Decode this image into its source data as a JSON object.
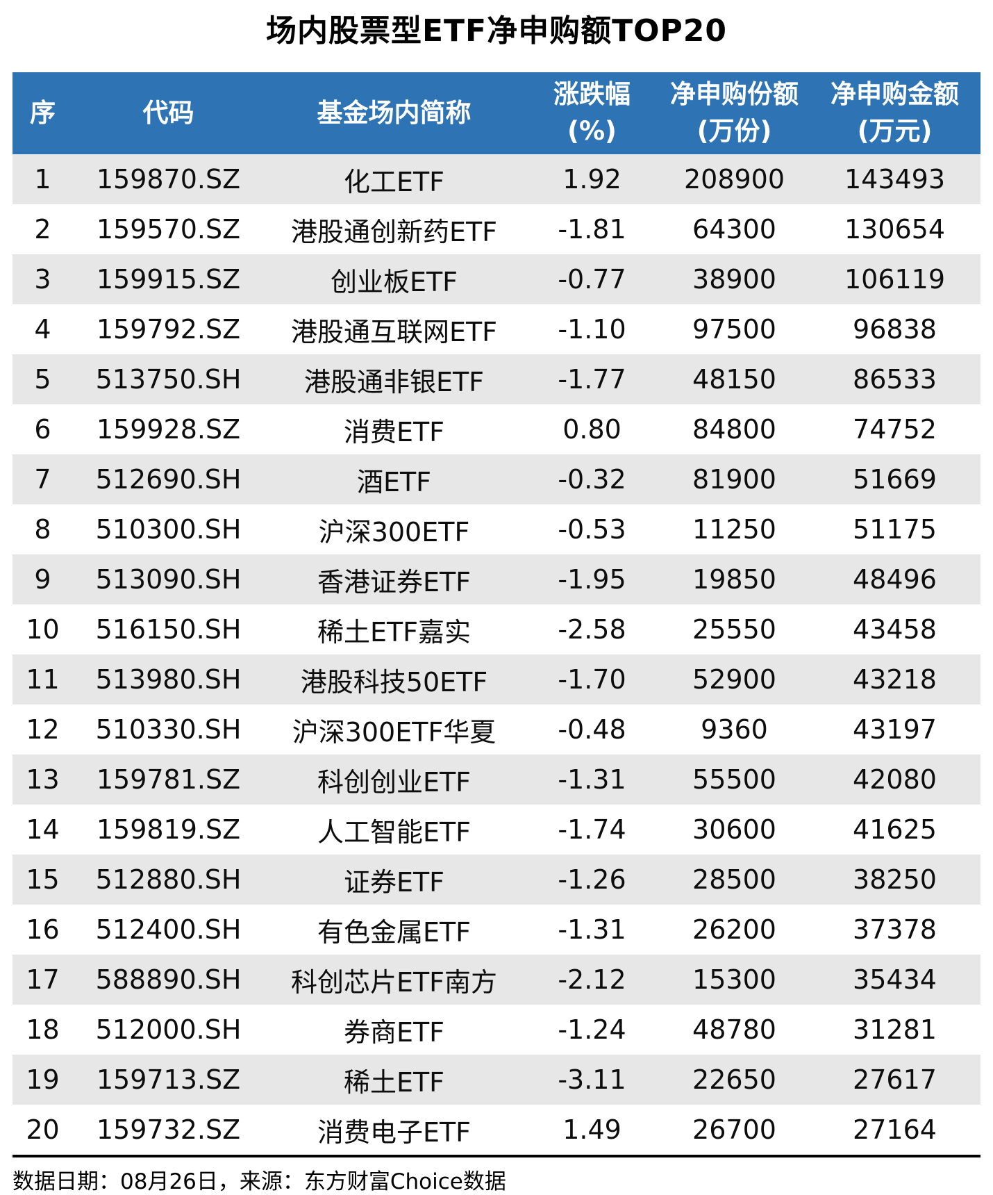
{
  "title": "场内股票型ETF净申购额TOP20",
  "colors": {
    "header_bg": "#2E74B5",
    "header_text": "#FFFFFF",
    "row_alt_bg": "#E7E7E7",
    "row_bg": "#FFFFFF",
    "text": "#0D0D0D",
    "divider": "#000000"
  },
  "table": {
    "columns": [
      {
        "label": "序",
        "sub": ""
      },
      {
        "label": "代码",
        "sub": ""
      },
      {
        "label": "基金场内简称",
        "sub": ""
      },
      {
        "label": "涨跌幅",
        "sub": "(%)"
      },
      {
        "label": "净申购份额",
        "sub": "(万份)"
      },
      {
        "label": "净申购金额",
        "sub": "(万元)"
      }
    ],
    "rows": [
      [
        "1",
        "159870.SZ",
        "化工ETF",
        "1.92",
        "208900",
        "143493"
      ],
      [
        "2",
        "159570.SZ",
        "港股通创新药ETF",
        "-1.81",
        "64300",
        "130654"
      ],
      [
        "3",
        "159915.SZ",
        "创业板ETF",
        "-0.77",
        "38900",
        "106119"
      ],
      [
        "4",
        "159792.SZ",
        "港股通互联网ETF",
        "-1.10",
        "97500",
        "96838"
      ],
      [
        "5",
        "513750.SH",
        "港股通非银ETF",
        "-1.77",
        "48150",
        "86533"
      ],
      [
        "6",
        "159928.SZ",
        "消费ETF",
        "0.80",
        "84800",
        "74752"
      ],
      [
        "7",
        "512690.SH",
        "酒ETF",
        "-0.32",
        "81900",
        "51669"
      ],
      [
        "8",
        "510300.SH",
        "沪深300ETF",
        "-0.53",
        "11250",
        "51175"
      ],
      [
        "9",
        "513090.SH",
        "香港证券ETF",
        "-1.95",
        "19850",
        "48496"
      ],
      [
        "10",
        "516150.SH",
        "稀土ETF嘉实",
        "-2.58",
        "25550",
        "43458"
      ],
      [
        "11",
        "513980.SH",
        "港股科技50ETF",
        "-1.70",
        "52900",
        "43218"
      ],
      [
        "12",
        "510330.SH",
        "沪深300ETF华夏",
        "-0.48",
        "9360",
        "43197"
      ],
      [
        "13",
        "159781.SZ",
        "科创创业ETF",
        "-1.31",
        "55500",
        "42080"
      ],
      [
        "14",
        "159819.SZ",
        "人工智能ETF",
        "-1.74",
        "30600",
        "41625"
      ],
      [
        "15",
        "512880.SH",
        "证券ETF",
        "-1.26",
        "28500",
        "38250"
      ],
      [
        "16",
        "512400.SH",
        "有色金属ETF",
        "-1.31",
        "26200",
        "37378"
      ],
      [
        "17",
        "588890.SH",
        "科创芯片ETF南方",
        "-2.12",
        "15300",
        "35434"
      ],
      [
        "18",
        "512000.SH",
        "券商ETF",
        "-1.24",
        "48780",
        "31281"
      ],
      [
        "19",
        "159713.SZ",
        "稀土ETF",
        "-3.11",
        "22650",
        "27617"
      ],
      [
        "20",
        "159732.SZ",
        "消费电子ETF",
        "1.49",
        "26700",
        "27164"
      ]
    ]
  },
  "footer": {
    "note": "数据日期：08月26日，来源：东方财富Choice数据"
  },
  "chart_data": {
    "type": "table",
    "title": "场内股票型ETF净申购额TOP20",
    "columns": [
      "序",
      "代码",
      "基金场内简称",
      "涨跌幅(%)",
      "净申购份额(万份)",
      "净申购金额(万元)"
    ],
    "rows": [
      [
        1,
        "159870.SZ",
        "化工ETF",
        1.92,
        208900,
        143493
      ],
      [
        2,
        "159570.SZ",
        "港股通创新药ETF",
        -1.81,
        64300,
        130654
      ],
      [
        3,
        "159915.SZ",
        "创业板ETF",
        -0.77,
        38900,
        106119
      ],
      [
        4,
        "159792.SZ",
        "港股通互联网ETF",
        -1.1,
        97500,
        96838
      ],
      [
        5,
        "513750.SH",
        "港股通非银ETF",
        -1.77,
        48150,
        86533
      ],
      [
        6,
        "159928.SZ",
        "消费ETF",
        0.8,
        84800,
        74752
      ],
      [
        7,
        "512690.SH",
        "酒ETF",
        -0.32,
        81900,
        51669
      ],
      [
        8,
        "510300.SH",
        "沪深300ETF",
        -0.53,
        11250,
        51175
      ],
      [
        9,
        "513090.SH",
        "香港证券ETF",
        -1.95,
        19850,
        48496
      ],
      [
        10,
        "516150.SH",
        "稀土ETF嘉实",
        -2.58,
        25550,
        43458
      ],
      [
        11,
        "513980.SH",
        "港股科技50ETF",
        -1.7,
        52900,
        43218
      ],
      [
        12,
        "510330.SH",
        "沪深300ETF华夏",
        -0.48,
        9360,
        43197
      ],
      [
        13,
        "159781.SZ",
        "科创创业ETF",
        -1.31,
        55500,
        42080
      ],
      [
        14,
        "159819.SZ",
        "人工智能ETF",
        -1.74,
        30600,
        41625
      ],
      [
        15,
        "512880.SH",
        "证券ETF",
        -1.26,
        28500,
        38250
      ],
      [
        16,
        "512400.SH",
        "有色金属ETF",
        -1.31,
        26200,
        37378
      ],
      [
        17,
        "588890.SH",
        "科创芯片ETF南方",
        -2.12,
        15300,
        35434
      ],
      [
        18,
        "512000.SH",
        "券商ETF",
        -1.24,
        48780,
        31281
      ],
      [
        19,
        "159713.SZ",
        "稀土ETF",
        -3.11,
        22650,
        27617
      ],
      [
        20,
        "159732.SZ",
        "消费电子ETF",
        1.49,
        26700,
        27164
      ]
    ],
    "source_note": "数据日期：08月26日，来源：东方财富Choice数据"
  }
}
